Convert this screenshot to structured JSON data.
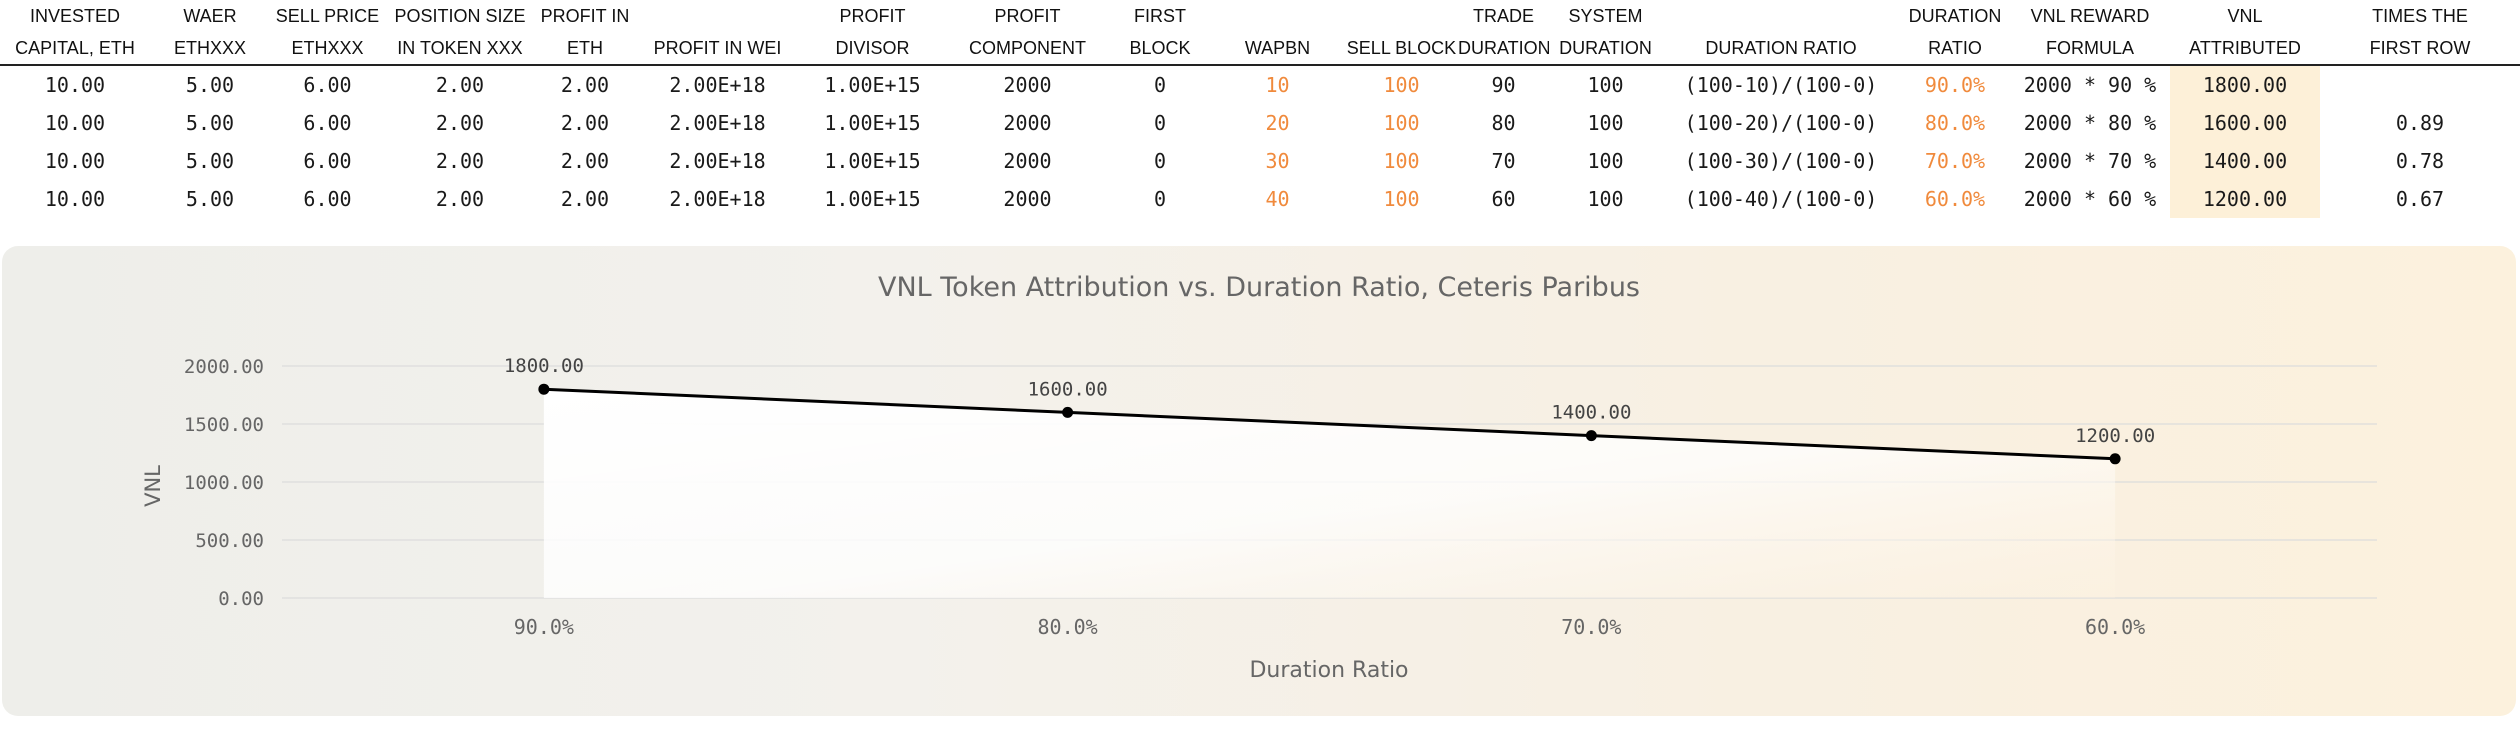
{
  "table": {
    "headers": [
      [
        "INVESTED",
        "CAPITAL, ETH"
      ],
      [
        "WAER",
        "ETHXXX"
      ],
      [
        "SELL PRICE",
        "ETHXXX"
      ],
      [
        "POSITION SIZE",
        "IN TOKEN XXX"
      ],
      [
        "PROFIT IN",
        "ETH"
      ],
      [
        "",
        "PROFIT IN WEI"
      ],
      [
        "PROFIT",
        "DIVISOR"
      ],
      [
        "PROFIT",
        "COMPONENT"
      ],
      [
        "FIRST",
        "BLOCK"
      ],
      [
        "",
        "WAPBN"
      ],
      [
        "",
        "SELL BLOCK"
      ],
      [
        "TRADE",
        "DURATION"
      ],
      [
        "SYSTEM",
        "DURATION"
      ],
      [
        "",
        "DURATION RATIO"
      ],
      [
        "DURATION",
        "RATIO"
      ],
      [
        "VNL REWARD",
        "FORMULA"
      ],
      [
        "VNL",
        "ATTRIBUTED"
      ],
      [
        "TIMES THE",
        "FIRST ROW"
      ]
    ],
    "rows": [
      [
        "10.00",
        "5.00",
        "6.00",
        "2.00",
        "2.00",
        "2.00E+18",
        "1.00E+15",
        "2000",
        "0",
        "10",
        "100",
        "90",
        "100",
        "(100-10)/(100-0)",
        "90.0%",
        "2000 * 90 %",
        "1800.00",
        ""
      ],
      [
        "10.00",
        "5.00",
        "6.00",
        "2.00",
        "2.00",
        "2.00E+18",
        "1.00E+15",
        "2000",
        "0",
        "20",
        "100",
        "80",
        "100",
        "(100-20)/(100-0)",
        "80.0%",
        "2000 * 80 %",
        "1600.00",
        "0.89"
      ],
      [
        "10.00",
        "5.00",
        "6.00",
        "2.00",
        "2.00",
        "2.00E+18",
        "1.00E+15",
        "2000",
        "0",
        "30",
        "100",
        "70",
        "100",
        "(100-30)/(100-0)",
        "70.0%",
        "2000 * 70 %",
        "1400.00",
        "0.78"
      ],
      [
        "10.00",
        "5.00",
        "6.00",
        "2.00",
        "2.00",
        "2.00E+18",
        "1.00E+15",
        "2000",
        "0",
        "40",
        "100",
        "60",
        "100",
        "(100-40)/(100-0)",
        "60.0%",
        "2000 * 60 %",
        "1200.00",
        "0.67"
      ]
    ],
    "orange_columns": [
      9,
      10,
      14
    ],
    "highlight_column": 16,
    "colors": {
      "orange": "#f08a3c",
      "highlight": "#fdf0d8"
    }
  },
  "chart_data": {
    "type": "line",
    "title": "VNL Token Attribution vs. Duration Ratio, Ceteris Paribus",
    "xlabel": "Duration Ratio",
    "ylabel": "VNL",
    "categories": [
      "90.0%",
      "80.0%",
      "70.0%",
      "60.0%"
    ],
    "values": [
      1800,
      1600,
      1400,
      1200
    ],
    "data_labels": [
      "1800.00",
      "1600.00",
      "1400.00",
      "1200.00"
    ],
    "y_ticks": [
      0,
      500,
      1000,
      1500,
      2000
    ],
    "y_tick_labels": [
      "0.00",
      "500.00",
      "1000.00",
      "1500.00",
      "2000.00"
    ],
    "ylim": [
      0,
      2000
    ],
    "grid": true,
    "legend": "none",
    "colors": {
      "line": "#000000",
      "grid": "#dcdcdc",
      "text": "#666666"
    }
  }
}
